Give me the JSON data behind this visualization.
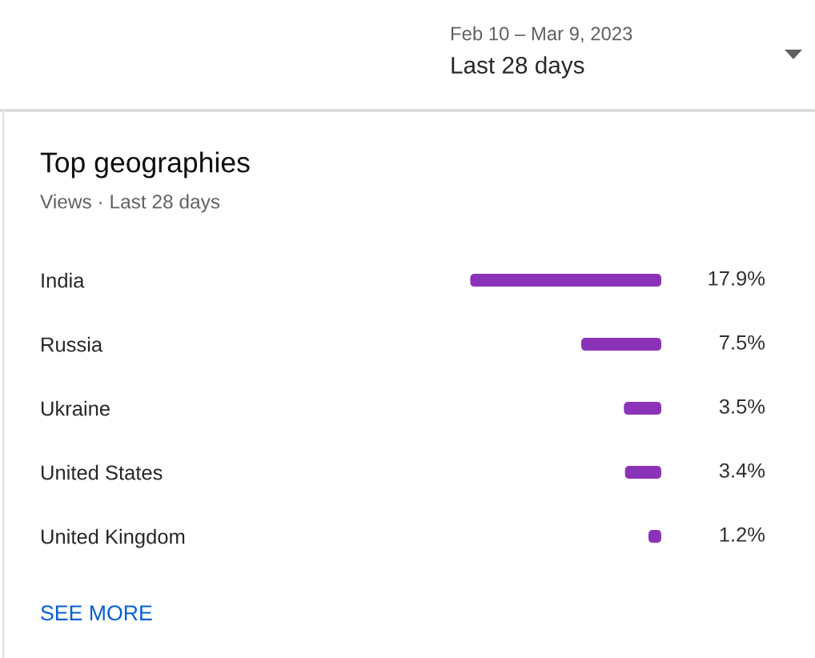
{
  "chart_data": {
    "type": "bar",
    "orientation": "horizontal",
    "title": "Top geographies",
    "subtitle": "Views · Last 28 days",
    "categories": [
      "India",
      "Russia",
      "Ukraine",
      "United States",
      "United Kingdom"
    ],
    "values": [
      17.9,
      7.5,
      3.5,
      3.4,
      1.2
    ],
    "value_labels": [
      "17.9%",
      "7.5%",
      "3.5%",
      "3.4%",
      "1.2%"
    ],
    "color": "#8b33b8",
    "xlim": [
      18,
      0
    ],
    "tick_labels": "y",
    "annotations": [
      "Feb 10 – Mar 9, 2023",
      "Last 28 days",
      "SEE MORE"
    ]
  }
}
